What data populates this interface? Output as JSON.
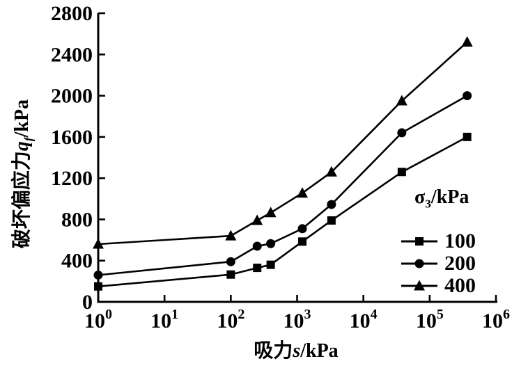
{
  "chart_data": {
    "type": "line",
    "title": "",
    "x_scale": "log",
    "x": [
      1,
      100,
      250,
      400,
      1200,
      3300,
      38000,
      367500
    ],
    "series": [
      {
        "name": "100",
        "marker": "square",
        "values": [
          150,
          265,
          330,
          360,
          585,
          790,
          1260,
          1600
        ]
      },
      {
        "name": "200",
        "marker": "circle",
        "values": [
          260,
          390,
          540,
          565,
          710,
          945,
          1640,
          2000
        ]
      },
      {
        "name": "400",
        "marker": "triangle",
        "values": [
          560,
          640,
          790,
          865,
          1055,
          1260,
          1950,
          2520
        ]
      }
    ],
    "xlabel": {
      "cn": "吸力",
      "var": "s",
      "unit": "/kPa"
    },
    "ylabel": {
      "cn": "破坏偏应力",
      "var": "q",
      "sub": "f",
      "unit": "/kPa"
    },
    "x_ticks": {
      "base": "10",
      "exponents": [
        0,
        1,
        2,
        3,
        4,
        5,
        6
      ]
    },
    "y_ticks": [
      0,
      400,
      800,
      1200,
      1600,
      2000,
      2400,
      2800
    ],
    "xlim_exp": [
      0,
      6
    ],
    "ylim": [
      0,
      2800
    ],
    "grid": false,
    "legend": {
      "title": {
        "sym": "σ",
        "sub": "3",
        "unit": "/kPa"
      },
      "position": "right-middle"
    },
    "colors": {
      "foreground": "#000000",
      "background": "#ffffff"
    }
  }
}
